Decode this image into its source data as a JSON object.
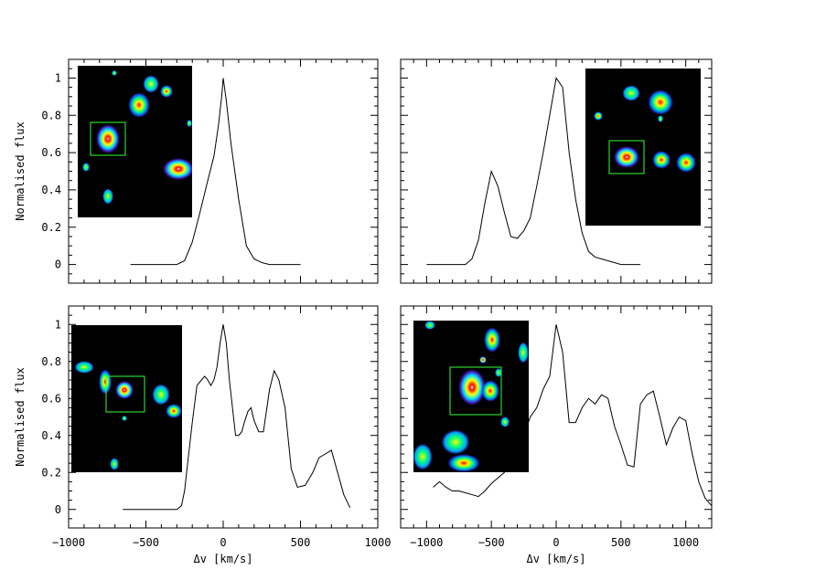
{
  "chart_data": [
    {
      "type": "line",
      "panel": "top-left",
      "xlim": [
        -1000,
        1000
      ],
      "ylim": [
        -0.1,
        1.1
      ],
      "xticks": [
        "-1000",
        "-500",
        "0",
        "500",
        "1000"
      ],
      "yticks": [
        "0",
        "0.2",
        "0.4",
        "0.6",
        "0.8",
        "1"
      ],
      "ylabel": "Normalised flux",
      "xlabel": "",
      "show_xticklabels": false,
      "show_yticklabels": true,
      "inset": "top-left",
      "x": [
        -600,
        -300,
        -250,
        -200,
        -150,
        -100,
        -60,
        -30,
        -10,
        0,
        20,
        50,
        100,
        150,
        200,
        250,
        300,
        500
      ],
      "y": [
        0,
        0,
        0.02,
        0.12,
        0.28,
        0.45,
        0.58,
        0.75,
        0.9,
        1.0,
        0.88,
        0.65,
        0.35,
        0.1,
        0.03,
        0.01,
        0,
        0
      ]
    },
    {
      "type": "line",
      "panel": "top-right",
      "xlim": [
        -1200,
        1200
      ],
      "ylim": [
        -0.1,
        1.1
      ],
      "xticks": [
        "-1000",
        "-500",
        "0",
        "500",
        "1000"
      ],
      "yticks": [
        "0",
        "0.2",
        "0.4",
        "0.6",
        "0.8",
        "1"
      ],
      "ylabel": "",
      "xlabel": "",
      "show_xticklabels": false,
      "show_yticklabels": false,
      "inset": "top-right",
      "x": [
        -1000,
        -700,
        -650,
        -600,
        -550,
        -500,
        -450,
        -400,
        -350,
        -300,
        -250,
        -200,
        -150,
        -100,
        -50,
        0,
        50,
        100,
        150,
        200,
        250,
        300,
        350,
        400,
        450,
        500,
        650
      ],
      "y": [
        0,
        0,
        0.03,
        0.13,
        0.33,
        0.5,
        0.42,
        0.28,
        0.15,
        0.14,
        0.18,
        0.25,
        0.42,
        0.6,
        0.8,
        1.0,
        0.95,
        0.6,
        0.35,
        0.17,
        0.07,
        0.04,
        0.03,
        0.02,
        0.01,
        0,
        0
      ]
    },
    {
      "type": "line",
      "panel": "bottom-left",
      "xlim": [
        -1000,
        1000
      ],
      "ylim": [
        -0.1,
        1.1
      ],
      "xticks": [
        "-1000",
        "-500",
        "0",
        "500",
        "1000"
      ],
      "yticks": [
        "0",
        "0.2",
        "0.4",
        "0.6",
        "0.8",
        "1"
      ],
      "ylabel": "Normalised flux",
      "xlabel": "Δv [km/s]",
      "show_xticklabels": true,
      "show_yticklabels": true,
      "inset": "top-left",
      "x": [
        -650,
        -300,
        -270,
        -250,
        -230,
        -200,
        -170,
        -140,
        -120,
        -100,
        -80,
        -60,
        -40,
        -20,
        0,
        20,
        40,
        60,
        80,
        100,
        120,
        140,
        160,
        180,
        200,
        230,
        260,
        300,
        330,
        360,
        400,
        440,
        480,
        530,
        580,
        620,
        660,
        700,
        740,
        780,
        820
      ],
      "y": [
        0,
        0,
        0.02,
        0.1,
        0.25,
        0.47,
        0.67,
        0.7,
        0.72,
        0.7,
        0.67,
        0.7,
        0.77,
        0.9,
        1.0,
        0.9,
        0.7,
        0.55,
        0.4,
        0.4,
        0.42,
        0.48,
        0.53,
        0.55,
        0.48,
        0.42,
        0.42,
        0.65,
        0.75,
        0.7,
        0.55,
        0.22,
        0.12,
        0.13,
        0.2,
        0.28,
        0.3,
        0.32,
        0.2,
        0.08,
        0.01
      ]
    },
    {
      "type": "line",
      "panel": "bottom-right",
      "xlim": [
        -1200,
        1200
      ],
      "ylim": [
        -0.1,
        1.1
      ],
      "xticks": [
        "-1000",
        "-500",
        "0",
        "500",
        "1000"
      ],
      "yticks": [
        "0",
        "0.2",
        "0.4",
        "0.6",
        "0.8",
        "1"
      ],
      "ylabel": "",
      "xlabel": "Δv [km/s]",
      "show_xticklabels": true,
      "show_yticklabels": false,
      "inset": "top-left",
      "x": [
        -950,
        -900,
        -850,
        -800,
        -750,
        -700,
        -650,
        -600,
        -550,
        -500,
        -400,
        -300,
        -200,
        -150,
        -100,
        -50,
        0,
        50,
        100,
        150,
        200,
        250,
        300,
        350,
        400,
        450,
        500,
        550,
        600,
        650,
        700,
        750,
        800,
        850,
        900,
        950,
        1000,
        1050,
        1100,
        1150,
        1200
      ],
      "y": [
        0.12,
        0.15,
        0.12,
        0.1,
        0.1,
        0.09,
        0.08,
        0.07,
        0.1,
        0.14,
        0.2,
        0.3,
        0.5,
        0.55,
        0.65,
        0.72,
        1.0,
        0.85,
        0.47,
        0.47,
        0.55,
        0.6,
        0.57,
        0.62,
        0.6,
        0.45,
        0.35,
        0.24,
        0.23,
        0.57,
        0.62,
        0.64,
        0.5,
        0.35,
        0.44,
        0.5,
        0.48,
        0.3,
        0.15,
        0.06,
        0.02
      ]
    }
  ]
}
